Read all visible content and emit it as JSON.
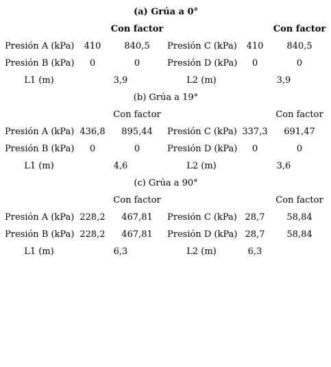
{
  "sections": [
    {
      "title": "(a) Grúa a 0°",
      "con_factor_left": "Con factor",
      "con_factor_right": "Con factor",
      "rows": [
        {
          "left_label": "Presión A (kPa)",
          "left_value": "410",
          "left_factor": "840,5",
          "right_label": "Presión C (kPa)",
          "right_value": "410",
          "right_factor": "840,5"
        },
        {
          "left_label": "Presión B (kPa)",
          "left_value": "0",
          "left_factor": "0",
          "right_label": "Presión D (kPa)",
          "right_value": "0",
          "right_factor": "0"
        },
        {
          "left_label": "L1 (m)",
          "left_factor": "3,9",
          "right_label": "L2 (m)",
          "right_factor": "3,9"
        }
      ]
    },
    {
      "title": "(b) Grúa a 19°",
      "con_factor_left": "Con factor",
      "con_factor_right": "Con factor",
      "rows": [
        {
          "left_label": "Presión A (kPa)",
          "left_value": "436,8",
          "left_factor": "895,44",
          "right_label": "Presión C (kPa)",
          "right_value": "337,3",
          "right_factor": "691,47"
        },
        {
          "left_label": "Presión B (kPa)",
          "left_value": "0",
          "left_factor": "0",
          "right_label": "Presión D (kPa)",
          "right_value": "0",
          "right_factor": "0"
        },
        {
          "left_label": "L1 (m)",
          "left_factor": "4,6",
          "right_label": "L2 (m)",
          "right_factor": "3,6"
        }
      ]
    },
    {
      "title": "(c) Grúa a 90°",
      "con_factor_left": "Con factor",
      "con_factor_right": "Con factor",
      "rows": [
        {
          "left_label": "Presión A (kPa)",
          "left_value": "228,2",
          "left_factor": "467,81",
          "right_label": "Presión C (kPa)",
          "right_value": "28,7",
          "right_factor": "58,84"
        },
        {
          "left_label": "Presión B (kPa)",
          "left_value": "228,2",
          "left_factor": "467,81",
          "right_label": "Presión D (kPa)",
          "right_value": "28,7",
          "right_factor": "58,84"
        },
        {
          "left_label": "L1 (m)",
          "left_factor": "6,3",
          "right_label": "L2 (m)",
          "right_value": "6,3"
        }
      ]
    }
  ]
}
